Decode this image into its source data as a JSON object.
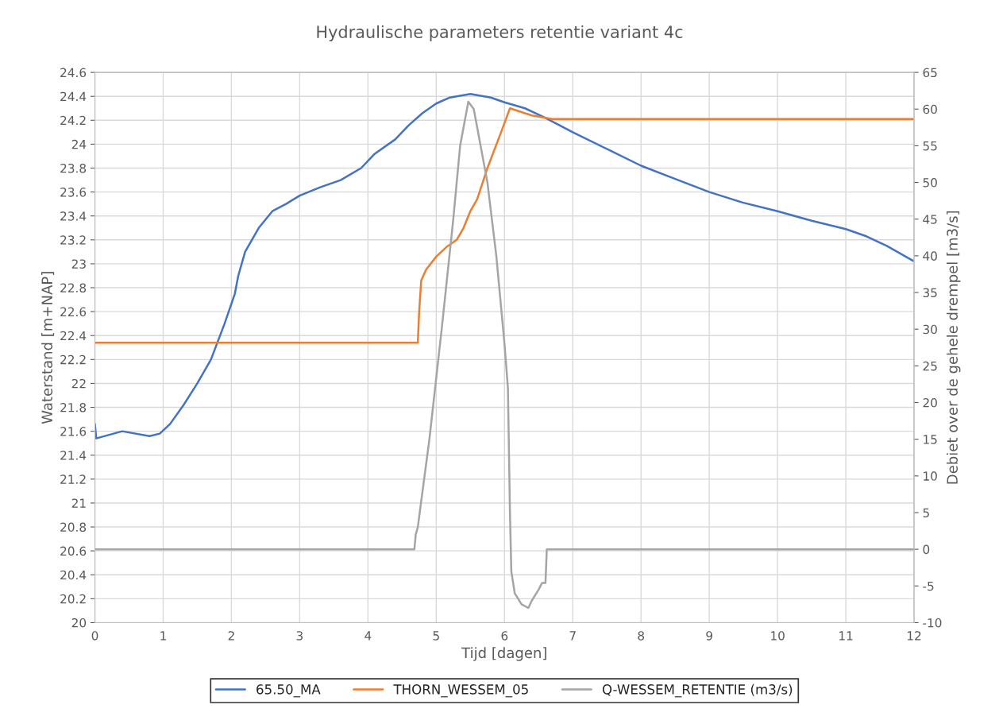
{
  "chart_data": {
    "type": "line",
    "title": "Hydraulische parameters retentie variant 4c",
    "xlabel": "Tijd [dagen]",
    "ylabel": "Waterstand [m+NAP]",
    "y2label": "Debiet over de gehele drempel [m3/s]",
    "xlim": [
      0,
      12
    ],
    "xticks": [
      0,
      1,
      2,
      3,
      4,
      5,
      6,
      7,
      8,
      9,
      10,
      11,
      12
    ],
    "ylim": [
      20,
      24.6
    ],
    "yticks": [
      20,
      20.2,
      20.4,
      20.6,
      20.8,
      21,
      21.2,
      21.4,
      21.6,
      21.8,
      22,
      22.2,
      22.4,
      22.6,
      22.8,
      23,
      23.2,
      23.4,
      23.6,
      23.8,
      24,
      24.2,
      24.4,
      24.6
    ],
    "y2lim": [
      -10,
      65
    ],
    "y2ticks": [
      -10,
      -5,
      0,
      5,
      10,
      15,
      20,
      25,
      30,
      35,
      40,
      45,
      50,
      55,
      60,
      65
    ],
    "grid": true,
    "legend": "bottom",
    "line_style": "solid",
    "marker": "none",
    "series": [
      {
        "name": "65.50_MA",
        "color": "#4472c4",
        "x": [
          0,
          0.02,
          0.4,
          0.8,
          0.95,
          1.1,
          1.3,
          1.5,
          1.7,
          1.9,
          2.05,
          2.1,
          2.2,
          2.4,
          2.6,
          2.8,
          3.0,
          3.3,
          3.6,
          3.9,
          4.1,
          4.4,
          4.6,
          4.8,
          5.0,
          5.2,
          5.5,
          5.8,
          6.0,
          6.3,
          6.6,
          7.0,
          7.5,
          8.0,
          8.5,
          9.0,
          9.5,
          10.0,
          10.5,
          11.0,
          11.3,
          11.6,
          12.0
        ],
        "values": [
          21.66,
          21.54,
          21.6,
          21.56,
          21.58,
          21.66,
          21.82,
          22.0,
          22.2,
          22.5,
          22.75,
          22.9,
          23.1,
          23.3,
          23.44,
          23.5,
          23.57,
          23.64,
          23.7,
          23.8,
          23.92,
          24.04,
          24.16,
          24.26,
          24.34,
          24.39,
          24.42,
          24.39,
          24.35,
          24.3,
          24.22,
          24.1,
          23.96,
          23.82,
          23.71,
          23.6,
          23.51,
          23.44,
          23.36,
          23.29,
          23.23,
          23.15,
          23.02
        ]
      },
      {
        "name": "THORN_WESSEM_05",
        "color": "#ed7d31",
        "x": [
          0,
          4.73,
          4.75,
          4.78,
          4.85,
          5.0,
          5.15,
          5.3,
          5.4,
          5.5,
          5.6,
          5.75,
          5.95,
          6.08,
          6.4,
          6.7,
          12
        ],
        "values": [
          22.34,
          22.34,
          22.6,
          22.86,
          22.95,
          23.06,
          23.14,
          23.2,
          23.3,
          23.44,
          23.54,
          23.8,
          24.1,
          24.3,
          24.24,
          24.21,
          24.21
        ]
      },
      {
        "name": "Q-WESSEM_RETENTIE (m3/s)",
        "color": "#a5a5a5",
        "axis": "y2",
        "x": [
          0,
          4.68,
          4.7,
          4.73,
          4.9,
          5.08,
          5.25,
          5.35,
          5.47,
          5.55,
          5.75,
          5.88,
          6.0,
          6.05,
          6.08,
          6.1,
          6.15,
          6.25,
          6.35,
          6.4,
          6.5,
          6.55,
          6.6,
          6.62,
          12
        ],
        "values": [
          0,
          0,
          2,
          3,
          15,
          30,
          45,
          55,
          61,
          60,
          50,
          40,
          28,
          22,
          5,
          -3,
          -6,
          -7.5,
          -8,
          -7,
          -5.5,
          -4.6,
          -4.6,
          0,
          0
        ]
      }
    ]
  }
}
